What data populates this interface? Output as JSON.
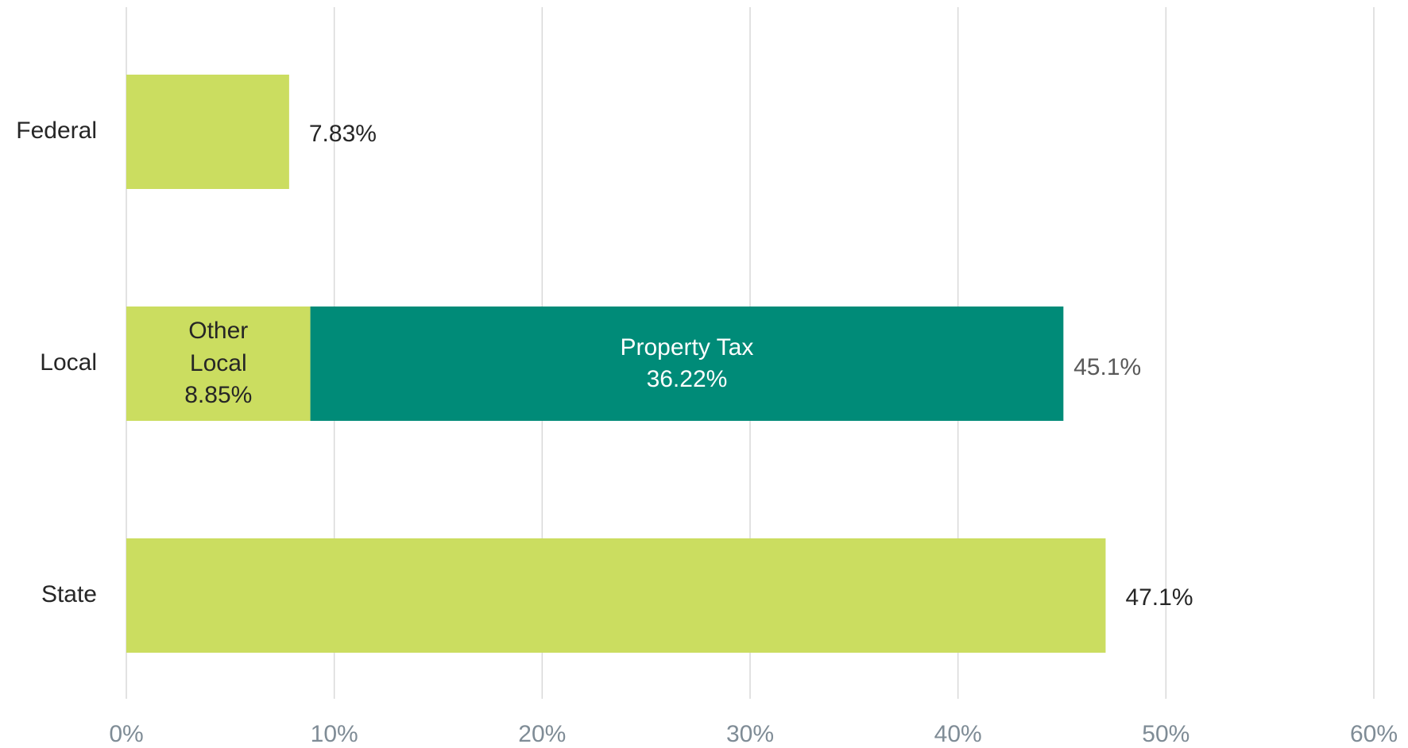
{
  "chart_data": {
    "type": "stacked_bar_horizontal",
    "categories": [
      "Federal",
      "Local",
      "State"
    ],
    "series": [
      {
        "name": "Other Local",
        "color": "#cbdd60",
        "values": [
          7.83,
          8.85,
          47.1
        ],
        "value_labels": [
          "7.83%",
          "8.85%",
          "47.1%"
        ],
        "label_inside": [
          false,
          true,
          false
        ]
      },
      {
        "name": "Property Tax",
        "color": "#008b78",
        "values": [
          null,
          36.22,
          null
        ],
        "value_labels": [
          null,
          "36.22%",
          null
        ],
        "label_inside": [
          null,
          true,
          null
        ]
      }
    ],
    "totals": {
      "values": [
        null,
        45.1,
        null
      ],
      "labels": [
        null,
        "45.1%",
        null
      ]
    },
    "xlim": [
      0,
      60
    ],
    "xticks": [
      {
        "value": 0,
        "label": "0%"
      },
      {
        "value": 10,
        "label": "10%"
      },
      {
        "value": 20,
        "label": "20%"
      },
      {
        "value": 30,
        "label": "30%"
      },
      {
        "value": 40,
        "label": "40%"
      },
      {
        "value": 50,
        "label": "50%"
      },
      {
        "value": 60,
        "label": "60%"
      }
    ],
    "grid": true
  }
}
